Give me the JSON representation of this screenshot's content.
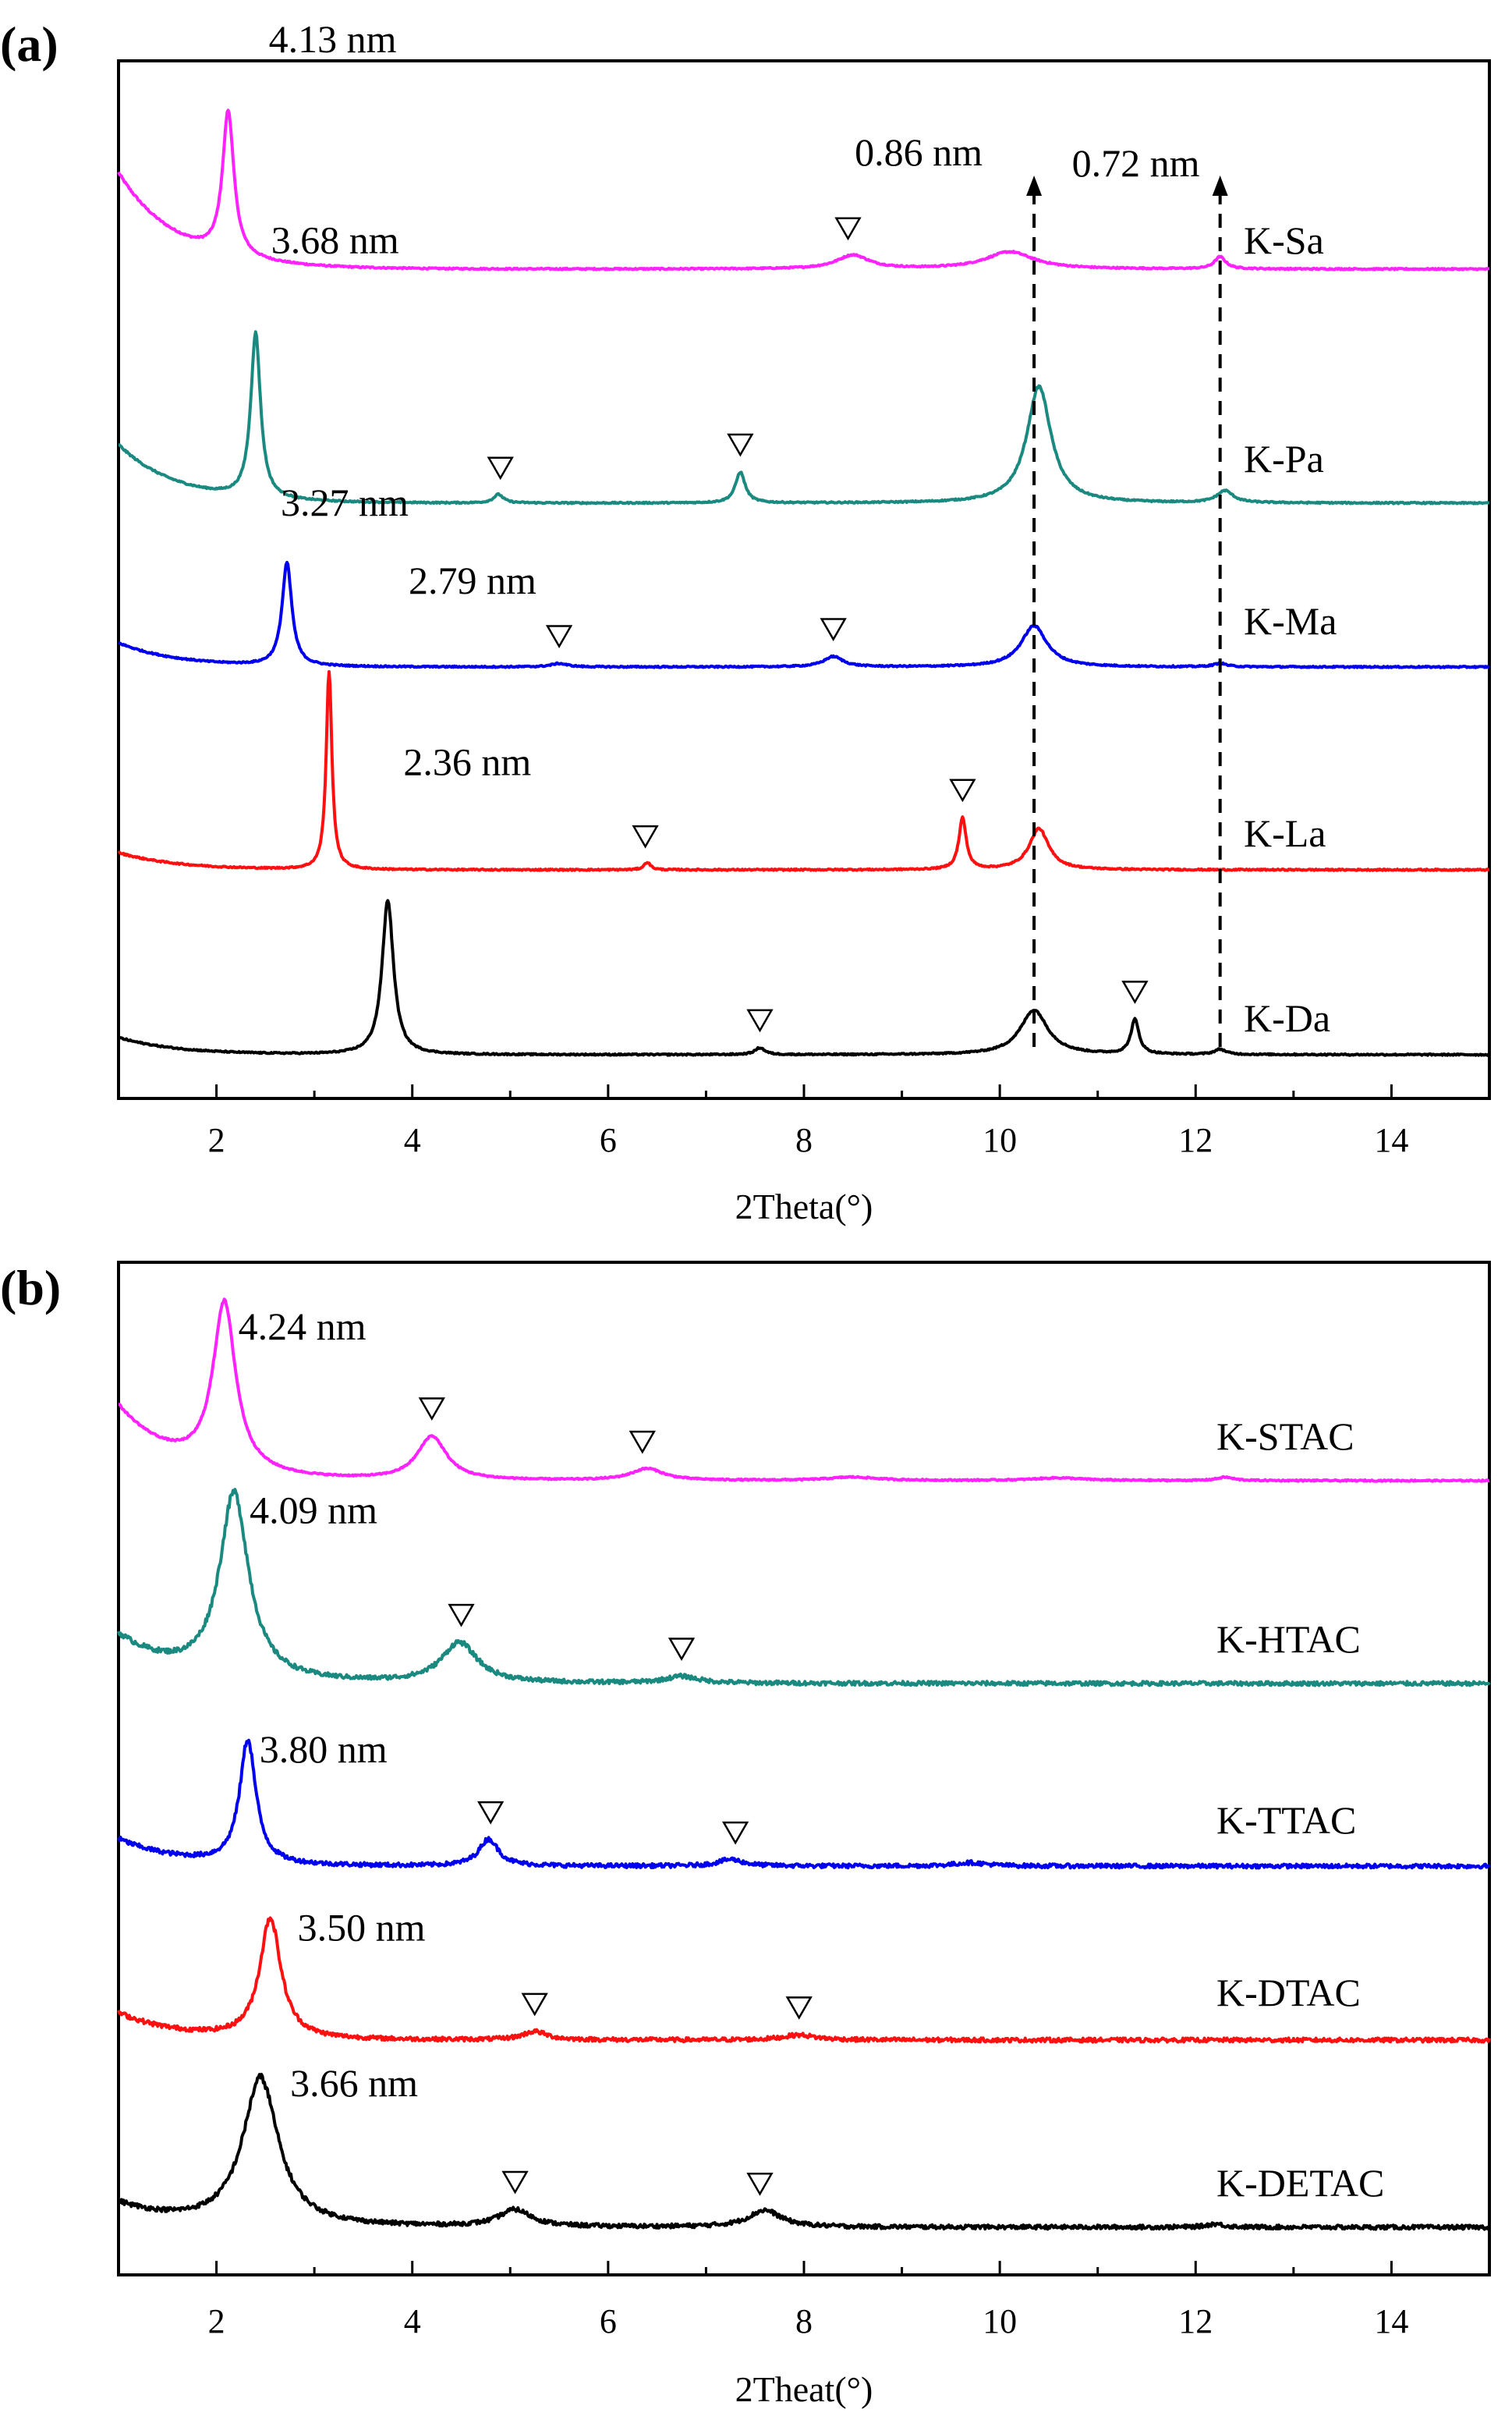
{
  "figure": {
    "panels": [
      "(a)",
      "(b)"
    ]
  },
  "chart_data": [
    {
      "type": "line",
      "panel": "(a)",
      "xlabel": "2Theta(°)",
      "ylabel": "",
      "xlim": [
        1,
        15
      ],
      "xticks": [
        "2",
        "4",
        "6",
        "8",
        "10",
        "12",
        "14"
      ],
      "yticks": false,
      "grid": false,
      "annotations": [
        {
          "text": "0.86 nm",
          "x": 10.35
        },
        {
          "text": "0.72 nm",
          "x": 12.25
        }
      ],
      "series": [
        {
          "name": "K-Sa",
          "color": "#ff22ff",
          "peak_x": 2.12,
          "peak_label": "4.13 nm",
          "start": 0.28,
          "baseline": 0.0,
          "peaks": [
            [
              2.12,
              0.42,
              0.07
            ],
            [
              8.5,
              0.04,
              0.2
            ],
            [
              10.1,
              0.05,
              0.3
            ],
            [
              12.25,
              0.035,
              0.07
            ]
          ],
          "triangles": [
            8.45
          ]
        },
        {
          "name": "K-Pa",
          "color": "#1a8a80",
          "peak_x": 2.4,
          "peak_label": "3.68 nm",
          "start": 0.17,
          "baseline": 0.0,
          "peaks": [
            [
              2.4,
              0.48,
              0.06
            ],
            [
              4.88,
              0.025,
              0.06
            ],
            [
              7.35,
              0.09,
              0.06
            ],
            [
              10.4,
              0.34,
              0.15
            ],
            [
              12.3,
              0.035,
              0.1
            ]
          ],
          "triangles": [
            4.9,
            7.35
          ]
        },
        {
          "name": "K-Ma",
          "color": "#0000ee",
          "peak_x": 2.72,
          "peak_label": "3.27 nm",
          "start": 0.07,
          "baseline": 0.0,
          "peaks": [
            [
              2.72,
              0.3,
              0.06
            ],
            [
              5.5,
              0.01,
              0.1
            ],
            [
              8.3,
              0.03,
              0.12
            ],
            [
              10.35,
              0.12,
              0.16
            ],
            [
              12.25,
              0.01,
              0.08
            ]
          ],
          "triangles": [
            5.5,
            8.3
          ]
        },
        {
          "name": "K-La",
          "color": "#ff1010",
          "peak_x": 3.15,
          "peak_label": "2.79 nm",
          "start": 0.05,
          "baseline": 0.0,
          "peaks": [
            [
              3.15,
              0.58,
              0.035
            ],
            [
              6.4,
              0.022,
              0.04
            ],
            [
              9.62,
              0.15,
              0.045
            ],
            [
              10.4,
              0.12,
              0.12
            ]
          ],
          "triangles": [
            6.38,
            9.62
          ]
        },
        {
          "name": "K-Da",
          "color": "#000000",
          "peak_x": 3.75,
          "peak_label": "2.36 nm",
          "start": 0.05,
          "baseline": 0.0,
          "peaks": [
            [
              3.75,
              0.45,
              0.07
            ],
            [
              7.55,
              0.02,
              0.06
            ],
            [
              10.35,
              0.13,
              0.17
            ],
            [
              11.38,
              0.1,
              0.05
            ],
            [
              12.25,
              0.015,
              0.07
            ]
          ],
          "triangles": [
            7.55,
            11.38
          ]
        }
      ]
    },
    {
      "type": "line",
      "panel": "(b)",
      "xlabel": "2Theat(°)",
      "ylabel": "",
      "xlim": [
        1,
        15
      ],
      "xticks": [
        "2",
        "4",
        "6",
        "8",
        "10",
        "12",
        "14"
      ],
      "yticks": false,
      "grid": false,
      "series": [
        {
          "name": "K-STAC",
          "color": "#ff22ff",
          "peak_x": 2.08,
          "peak_label": "4.24 nm",
          "start": 0.22,
          "baseline": 0.0,
          "peaks": [
            [
              2.08,
              0.5,
              0.14
            ],
            [
              4.2,
              0.13,
              0.18
            ],
            [
              6.4,
              0.035,
              0.2
            ],
            [
              8.5,
              0.01,
              0.3
            ],
            [
              10.6,
              0.008,
              0.3
            ],
            [
              12.3,
              0.01,
              0.1
            ]
          ],
          "triangles": [
            4.2,
            6.35
          ]
        },
        {
          "name": "K-HTAC",
          "color": "#1a8a80",
          "peak_x": 2.18,
          "peak_label": "4.09 nm",
          "start": 0.14,
          "baseline": 0.0,
          "peaks": [
            [
              2.18,
              0.55,
              0.18
            ],
            [
              4.48,
              0.12,
              0.22
            ],
            [
              6.75,
              0.02,
              0.2
            ]
          ],
          "triangles": [
            4.5,
            6.75
          ],
          "noisy": true
        },
        {
          "name": "K-TTAC",
          "color": "#0000ee",
          "peak_x": 2.32,
          "peak_label": "3.80 nm",
          "start": 0.08,
          "baseline": 0.0,
          "peaks": [
            [
              2.32,
              0.37,
              0.1
            ],
            [
              4.78,
              0.08,
              0.12
            ],
            [
              7.25,
              0.02,
              0.15
            ],
            [
              9.7,
              0.01,
              0.2
            ]
          ],
          "triangles": [
            4.8,
            7.3
          ],
          "noisy": true
        },
        {
          "name": "K-DTAC",
          "color": "#ff1010",
          "peak_x": 2.55,
          "peak_label": "3.50 nm",
          "start": 0.08,
          "baseline": 0.0,
          "peaks": [
            [
              2.55,
              0.36,
              0.13
            ],
            [
              5.25,
              0.025,
              0.15
            ],
            [
              7.95,
              0.015,
              0.2
            ]
          ],
          "triangles": [
            5.25,
            7.95
          ],
          "noisy": true
        },
        {
          "name": "K-DETAC",
          "color": "#000000",
          "peak_x": 2.45,
          "peak_label": "3.66 nm",
          "start": 0.07,
          "baseline": 0.0,
          "peaks": [
            [
              2.45,
              0.44,
              0.22
            ],
            [
              5.05,
              0.05,
              0.2
            ],
            [
              7.6,
              0.05,
              0.2
            ],
            [
              12.2,
              0.01,
              0.1
            ]
          ],
          "triangles": [
            5.05,
            7.55
          ],
          "noisy": true
        }
      ]
    }
  ]
}
